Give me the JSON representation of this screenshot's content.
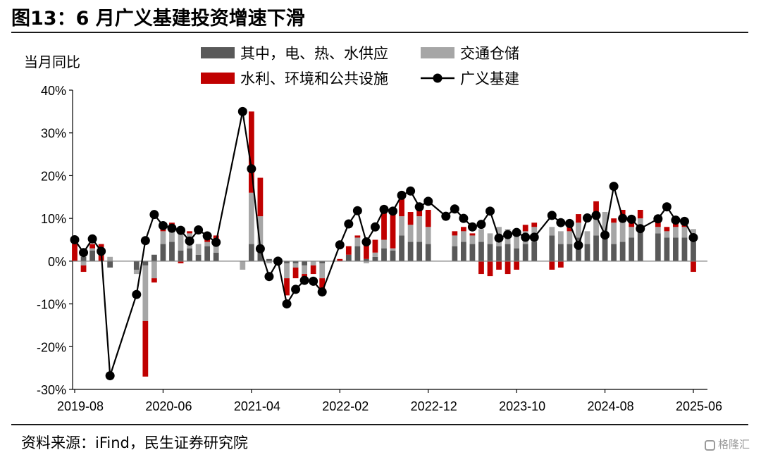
{
  "title": "图13：6 月广义基建投资增速下滑",
  "source": "资料来源：iFind，民生证券研究院",
  "watermark": "格隆汇",
  "chart_data": {
    "type": "bar",
    "stacked": true,
    "ylabel": "当月同比",
    "ylim": [
      -0.3,
      0.4
    ],
    "yticks": [
      -0.3,
      -0.2,
      -0.1,
      0.0,
      0.1,
      0.2,
      0.3,
      0.4
    ],
    "ytick_labels": [
      "-30%",
      "-20%",
      "-10%",
      "0%",
      "10%",
      "20%",
      "30%",
      "40%"
    ],
    "xtick_labels": [
      "2019-08",
      "2020-06",
      "2021-04",
      "2022-02",
      "2022-12",
      "2023-10",
      "2024-08",
      "2025-06"
    ],
    "xtick_positions": [
      0,
      10,
      20,
      30,
      40,
      50,
      60,
      70
    ],
    "legend_placement": "top",
    "colors": {
      "utilities": "#595959",
      "transport": "#a6a6a6",
      "water_env": "#c00000",
      "infra": "#000000"
    },
    "categories": [
      "2019-08",
      "2019-09",
      "2019-10",
      "2019-11",
      "2019-12",
      "2020-03",
      "2020-04",
      "2020-05",
      "2020-06",
      "2020-07",
      "2020-08",
      "2020-09",
      "2020-10",
      "2020-11",
      "2020-12",
      "2021-03",
      "2021-04",
      "2021-05",
      "2021-06",
      "2021-07",
      "2021-08",
      "2021-09",
      "2021-10",
      "2021-11",
      "2021-12",
      "2022-02",
      "2022-03",
      "2022-04",
      "2022-05",
      "2022-06",
      "2022-07",
      "2022-08",
      "2022-09",
      "2022-10",
      "2022-11",
      "2022-12",
      "2023-02",
      "2023-03",
      "2023-04",
      "2023-05",
      "2023-06",
      "2023-07",
      "2023-08",
      "2023-09",
      "2023-10",
      "2023-11",
      "2023-12",
      "2024-02",
      "2024-03",
      "2024-04",
      "2024-05",
      "2024-06",
      "2024-07",
      "2024-08",
      "2024-09",
      "2024-10",
      "2024-11",
      "2024-12",
      "2025-02",
      "2025-03",
      "2025-04",
      "2025-05",
      "2025-06"
    ],
    "xpos": [
      0,
      1,
      2,
      3,
      4,
      7,
      8,
      9,
      10,
      11,
      12,
      13,
      14,
      15,
      16,
      19,
      20,
      21,
      22,
      23,
      24,
      25,
      26,
      27,
      28,
      30,
      31,
      32,
      33,
      34,
      35,
      36,
      37,
      38,
      39,
      40,
      42,
      43,
      44,
      45,
      46,
      47,
      48,
      49,
      50,
      51,
      52,
      54,
      55,
      56,
      57,
      58,
      59,
      60,
      61,
      62,
      63,
      64,
      66,
      67,
      68,
      69,
      70
    ],
    "series": [
      {
        "name": "其中，电、热、水供应",
        "kind": "bar",
        "values": [
          0.0,
          0.01,
          0.025,
          0.0,
          -0.015,
          -0.02,
          -0.01,
          0.015,
          0.04,
          0.045,
          0.025,
          0.03,
          0.015,
          0.035,
          0.02,
          0.0,
          0.04,
          0.025,
          0.005,
          0.0,
          -0.005,
          -0.005,
          -0.01,
          0.0,
          -0.005,
          0.0,
          0.015,
          0.035,
          0.005,
          0.01,
          0.03,
          0.025,
          0.06,
          0.045,
          0.045,
          0.04,
          0.0,
          0.035,
          0.045,
          0.04,
          0.045,
          0.04,
          0.035,
          0.04,
          0.03,
          0.04,
          0.045,
          0.06,
          0.04,
          0.04,
          0.055,
          0.04,
          0.06,
          0.07,
          0.04,
          0.045,
          0.055,
          0.07,
          0.065,
          0.055,
          0.055,
          0.055,
          0.045
        ]
      },
      {
        "name": "交通仓储",
        "kind": "bar",
        "values": [
          0.0,
          -0.01,
          0.005,
          0.0,
          0.01,
          -0.01,
          -0.13,
          -0.04,
          0.03,
          0.04,
          0.04,
          0.035,
          0.025,
          0.01,
          0.02,
          -0.02,
          0.12,
          0.08,
          -0.005,
          -0.005,
          -0.035,
          -0.01,
          -0.02,
          -0.01,
          -0.035,
          0.0,
          0.0,
          0.02,
          -0.005,
          0.01,
          0.02,
          0.005,
          0.045,
          0.04,
          0.06,
          0.04,
          0.0,
          0.025,
          0.025,
          0.02,
          0.03,
          0.025,
          0.045,
          0.035,
          0.035,
          0.03,
          0.035,
          0.02,
          0.03,
          0.03,
          0.035,
          0.03,
          0.04,
          0.045,
          0.05,
          0.055,
          0.025,
          0.03,
          0.015,
          0.015,
          0.025,
          0.025,
          0.03
        ]
      },
      {
        "name": "水利、环境和公共设施",
        "kind": "bar",
        "values": [
          0.04,
          -0.015,
          0.01,
          0.04,
          0.0,
          0.0,
          -0.13,
          -0.01,
          0.015,
          0.005,
          -0.005,
          0.005,
          0.0,
          0.01,
          0.02,
          0.0,
          0.19,
          0.09,
          0.0,
          0.0,
          -0.04,
          -0.025,
          -0.01,
          -0.02,
          -0.03,
          0.005,
          0.02,
          0.005,
          0.035,
          0.03,
          0.08,
          0.08,
          0.05,
          0.03,
          0.025,
          0.04,
          0.0,
          0.01,
          0.01,
          0.005,
          -0.03,
          -0.035,
          -0.02,
          -0.03,
          -0.02,
          0.015,
          0.01,
          -0.02,
          -0.015,
          0.01,
          0.02,
          0.0,
          0.04,
          0.0,
          0.01,
          0.02,
          0.02,
          0.02,
          0.025,
          0.01,
          0.015,
          0.01,
          -0.025
        ]
      },
      {
        "name": "广义基建",
        "kind": "line",
        "values": [
          0.05,
          0.02,
          0.052,
          0.023,
          -0.268,
          -0.078,
          0.048,
          0.109,
          0.083,
          0.077,
          0.072,
          0.047,
          0.073,
          0.059,
          0.044,
          0.35,
          0.216,
          0.029,
          -0.036,
          0.0,
          -0.1,
          -0.066,
          -0.045,
          -0.047,
          -0.072,
          0.038,
          0.087,
          0.118,
          0.045,
          0.08,
          0.121,
          0.117,
          0.154,
          0.164,
          0.127,
          0.14,
          0.105,
          0.122,
          0.1,
          0.08,
          0.086,
          0.117,
          0.054,
          0.062,
          0.067,
          0.056,
          0.056,
          0.107,
          0.09,
          0.088,
          0.037,
          0.101,
          0.107,
          0.061,
          0.175,
          0.1,
          0.098,
          0.076,
          0.099,
          0.127,
          0.096,
          0.093,
          0.055
        ]
      }
    ]
  }
}
